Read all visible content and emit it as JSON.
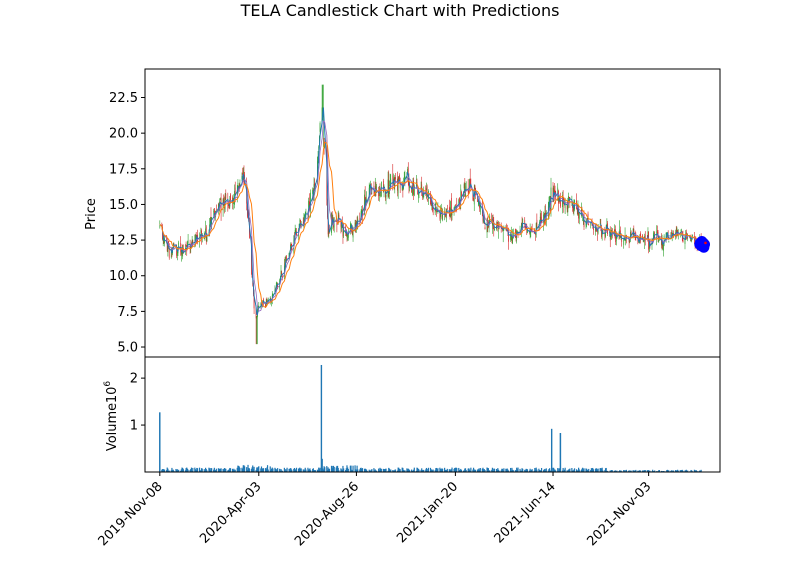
{
  "chart_data": {
    "type": "candlestick",
    "title": "TELA Candlestick Chart with Predictions",
    "price_panel": {
      "ylabel": "Price",
      "ylim": [
        4.3,
        24.5
      ],
      "yticks": [
        5.0,
        7.5,
        10.0,
        12.5,
        15.0,
        17.5,
        20.0,
        22.5
      ],
      "ytick_labels": [
        "5.0",
        "7.5",
        "10.0",
        "12.5",
        "15.0",
        "17.5",
        "20.0",
        "22.5"
      ],
      "close_trend": [
        [
          "2019-11-08",
          13.3
        ],
        [
          "2019-11-20",
          12.0
        ],
        [
          "2019-12-05",
          11.7
        ],
        [
          "2019-12-25",
          12.2
        ],
        [
          "2020-01-15",
          13.0
        ],
        [
          "2020-02-01",
          14.8
        ],
        [
          "2020-02-20",
          15.3
        ],
        [
          "2020-03-05",
          16.5
        ],
        [
          "2020-03-12",
          17.0
        ],
        [
          "2020-03-20",
          13.0
        ],
        [
          "2020-03-28",
          7.0
        ],
        [
          "2020-04-05",
          8.0
        ],
        [
          "2020-04-20",
          8.2
        ],
        [
          "2020-05-05",
          10.0
        ],
        [
          "2020-05-25",
          12.5
        ],
        [
          "2020-06-10",
          14.0
        ],
        [
          "2020-06-25",
          16.0
        ],
        [
          "2020-07-05",
          21.0
        ],
        [
          "2020-07-10",
          19.0
        ],
        [
          "2020-07-15",
          13.5
        ],
        [
          "2020-07-30",
          14.0
        ],
        [
          "2020-08-12",
          13.0
        ],
        [
          "2020-08-26",
          13.5
        ],
        [
          "2020-09-15",
          16.0
        ],
        [
          "2020-10-05",
          16.2
        ],
        [
          "2020-10-20",
          16.0
        ],
        [
          "2020-11-05",
          16.8
        ],
        [
          "2020-11-25",
          16.2
        ],
        [
          "2020-12-10",
          15.5
        ],
        [
          "2020-12-30",
          14.2
        ],
        [
          "2021-01-20",
          14.8
        ],
        [
          "2021-02-05",
          16.3
        ],
        [
          "2021-02-20",
          15.5
        ],
        [
          "2021-03-05",
          13.8
        ],
        [
          "2021-03-25",
          13.3
        ],
        [
          "2021-04-15",
          12.8
        ],
        [
          "2021-05-01",
          13.4
        ],
        [
          "2021-05-20",
          13.1
        ],
        [
          "2021-06-05",
          14.8
        ],
        [
          "2021-06-14",
          15.8
        ],
        [
          "2021-07-05",
          15.2
        ],
        [
          "2021-07-25",
          14.5
        ],
        [
          "2021-08-15",
          13.3
        ],
        [
          "2021-09-05",
          13.0
        ],
        [
          "2021-10-01",
          12.7
        ],
        [
          "2021-11-03",
          12.6
        ],
        [
          "2021-11-25",
          12.5
        ],
        [
          "2021-12-15",
          12.8
        ],
        [
          "2022-01-05",
          12.6
        ],
        [
          "2022-01-20",
          12.4
        ]
      ],
      "predictions": [
        [
          "2022-01-18",
          12.2
        ],
        [
          "2022-01-19",
          12.3
        ],
        [
          "2022-01-20",
          12.1
        ],
        [
          "2022-01-21",
          12.4
        ],
        [
          "2022-01-22",
          12.2
        ],
        [
          "2022-01-23",
          12.3
        ],
        [
          "2022-01-24",
          12.0
        ],
        [
          "2022-01-25",
          12.2
        ]
      ]
    },
    "volume_panel": {
      "ylabel": "Volume",
      "scale_label": "1e6",
      "ylim": [
        0,
        2.45
      ],
      "yticks": [
        1,
        2
      ],
      "ytick_labels": [
        "1",
        "2"
      ],
      "spikes": [
        [
          "2019-11-08",
          1.27
        ],
        [
          "2020-07-05",
          2.28
        ],
        [
          "2020-07-06",
          0.28
        ],
        [
          "2021-06-12",
          0.92
        ],
        [
          "2021-06-25",
          0.83
        ]
      ],
      "baseline": 0.06
    },
    "x_axis": {
      "range": [
        "2019-10-17",
        "2022-02-17"
      ],
      "ticks": [
        "2019-11-08",
        "2020-04-03",
        "2020-08-26",
        "2021-01-20",
        "2021-06-14",
        "2021-11-03"
      ],
      "tick_labels": [
        "2019-Nov-08",
        "2020-Apr-03",
        "2020-Aug-26",
        "2021-Jan-20",
        "2021-Jun-14",
        "2021-Nov-03"
      ]
    },
    "colors": {
      "up": "#2ca02c",
      "down": "#d62728",
      "ma_short": "#1f77b4",
      "ma_long": "#ff7f0e",
      "ma_mid": "#9467bd",
      "volume": "#1f77b4",
      "prediction": "#0000ff",
      "prediction_marker": "#ff0000"
    }
  }
}
